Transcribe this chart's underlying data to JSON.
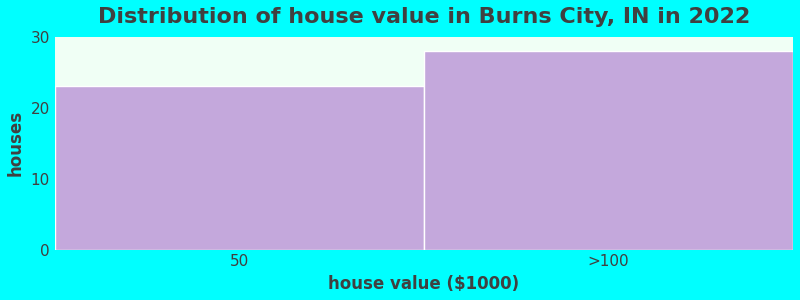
{
  "title": "Distribution of house value in Burns City, IN in 2022",
  "categories": [
    "50",
    ">100"
  ],
  "values": [
    23,
    28
  ],
  "bar_color": "#C4A8DC",
  "background_color": "#00FFFF",
  "plot_bg_color": "#F0FFF5",
  "xlabel": "house value ($1000)",
  "ylabel": "houses",
  "ylim": [
    0,
    30
  ],
  "yticks": [
    0,
    10,
    20,
    30
  ],
  "title_fontsize": 16,
  "axis_label_fontsize": 12,
  "tick_fontsize": 11,
  "text_color": "#404040",
  "bar_positions": [
    0.25,
    0.75
  ],
  "bar_width": 0.5
}
